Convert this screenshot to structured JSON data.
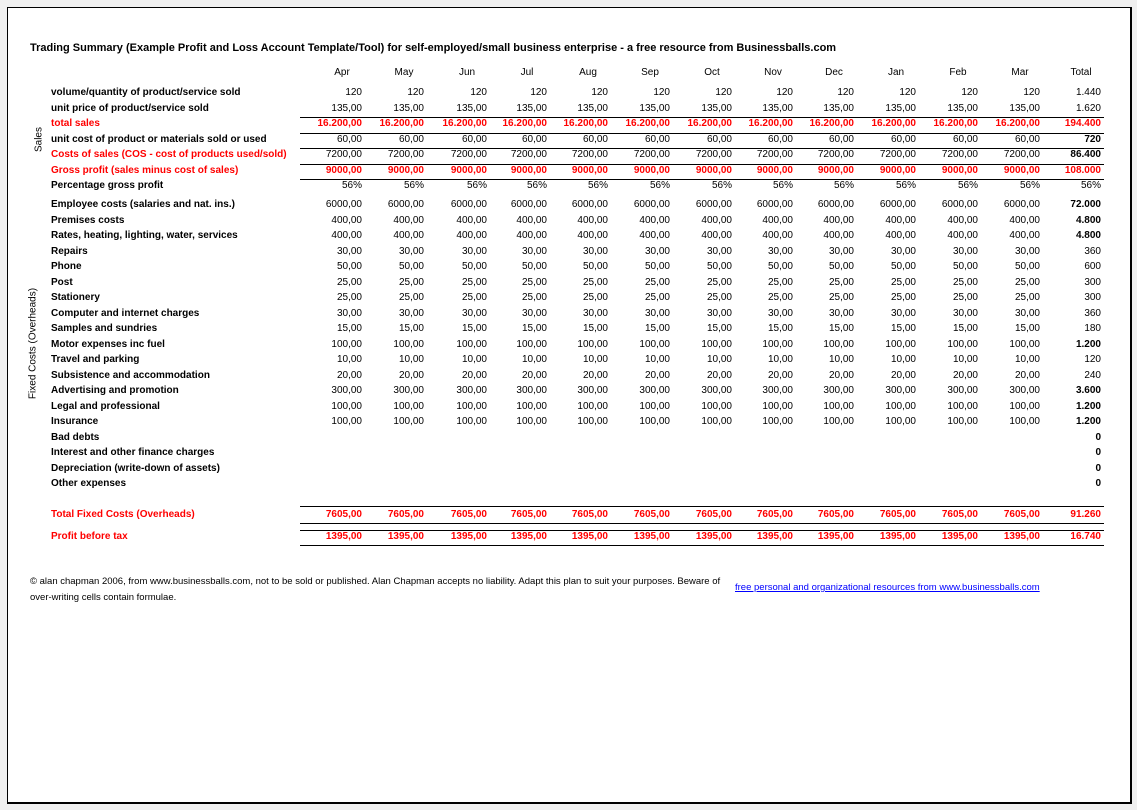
{
  "title": "Trading Summary (Example Profit and Loss Account Template/Tool) for self-employed/small business enterprise - a free resource from Businessballs.com",
  "columns": [
    "Apr",
    "May",
    "Jun",
    "Jul",
    "Aug",
    "Sep",
    "Oct",
    "Nov",
    "Dec",
    "Jan",
    "Feb",
    "Mar",
    "Total"
  ],
  "colors": {
    "highlight": "#ff0000",
    "text": "#000000",
    "link": "#0000ff"
  },
  "sections": {
    "sales": "Sales",
    "fixed": "Fixed Costs (Overheads)"
  },
  "rows": [
    {
      "label": "volume/quantity of product/service sold",
      "values": [
        "120",
        "120",
        "120",
        "120",
        "120",
        "120",
        "120",
        "120",
        "120",
        "120",
        "120",
        "120"
      ],
      "total": "1.440",
      "style": "normal"
    },
    {
      "label": "unit price of product/service sold",
      "values": [
        "135,00",
        "135,00",
        "135,00",
        "135,00",
        "135,00",
        "135,00",
        "135,00",
        "135,00",
        "135,00",
        "135,00",
        "135,00",
        "135,00"
      ],
      "total": "1.620",
      "style": "normal"
    },
    {
      "label": "total sales",
      "values": [
        "16.200,00",
        "16.200,00",
        "16.200,00",
        "16.200,00",
        "16.200,00",
        "16.200,00",
        "16.200,00",
        "16.200,00",
        "16.200,00",
        "16.200,00",
        "16.200,00",
        "16.200,00"
      ],
      "total": "194.400",
      "style": "red"
    },
    {
      "label": "unit cost of product or materials sold or used",
      "values": [
        "60,00",
        "60,00",
        "60,00",
        "60,00",
        "60,00",
        "60,00",
        "60,00",
        "60,00",
        "60,00",
        "60,00",
        "60,00",
        "60,00"
      ],
      "total": "720",
      "style": "boldtotal"
    },
    {
      "label": "Costs of sales (COS - cost of products used/sold)",
      "values": [
        "7200,00",
        "7200,00",
        "7200,00",
        "7200,00",
        "7200,00",
        "7200,00",
        "7200,00",
        "7200,00",
        "7200,00",
        "7200,00",
        "7200,00",
        "7200,00"
      ],
      "total": "86.400",
      "style": "redlabel"
    },
    {
      "label": "Gross profit (sales minus cost of sales)",
      "values": [
        "9000,00",
        "9000,00",
        "9000,00",
        "9000,00",
        "9000,00",
        "9000,00",
        "9000,00",
        "9000,00",
        "9000,00",
        "9000,00",
        "9000,00",
        "9000,00"
      ],
      "total": "108.000",
      "style": "red"
    },
    {
      "label": "Percentage gross profit",
      "values": [
        "56%",
        "56%",
        "56%",
        "56%",
        "56%",
        "56%",
        "56%",
        "56%",
        "56%",
        "56%",
        "56%",
        "56%"
      ],
      "total": "56%",
      "style": "normal"
    },
    {
      "label": "Employee costs (salaries and nat. ins.)",
      "values": [
        "6000,00",
        "6000,00",
        "6000,00",
        "6000,00",
        "6000,00",
        "6000,00",
        "6000,00",
        "6000,00",
        "6000,00",
        "6000,00",
        "6000,00",
        "6000,00"
      ],
      "total": "72.000",
      "style": "boldtotal"
    },
    {
      "label": "Premises costs",
      "values": [
        "400,00",
        "400,00",
        "400,00",
        "400,00",
        "400,00",
        "400,00",
        "400,00",
        "400,00",
        "400,00",
        "400,00",
        "400,00",
        "400,00"
      ],
      "total": "4.800",
      "style": "boldtotal"
    },
    {
      "label": "Rates, heating, lighting, water, services",
      "values": [
        "400,00",
        "400,00",
        "400,00",
        "400,00",
        "400,00",
        "400,00",
        "400,00",
        "400,00",
        "400,00",
        "400,00",
        "400,00",
        "400,00"
      ],
      "total": "4.800",
      "style": "boldtotal"
    },
    {
      "label": "Repairs",
      "values": [
        "30,00",
        "30,00",
        "30,00",
        "30,00",
        "30,00",
        "30,00",
        "30,00",
        "30,00",
        "30,00",
        "30,00",
        "30,00",
        "30,00"
      ],
      "total": "360",
      "style": "normal"
    },
    {
      "label": "Phone",
      "values": [
        "50,00",
        "50,00",
        "50,00",
        "50,00",
        "50,00",
        "50,00",
        "50,00",
        "50,00",
        "50,00",
        "50,00",
        "50,00",
        "50,00"
      ],
      "total": "600",
      "style": "normal"
    },
    {
      "label": "Post",
      "values": [
        "25,00",
        "25,00",
        "25,00",
        "25,00",
        "25,00",
        "25,00",
        "25,00",
        "25,00",
        "25,00",
        "25,00",
        "25,00",
        "25,00"
      ],
      "total": "300",
      "style": "normal"
    },
    {
      "label": "Stationery",
      "values": [
        "25,00",
        "25,00",
        "25,00",
        "25,00",
        "25,00",
        "25,00",
        "25,00",
        "25,00",
        "25,00",
        "25,00",
        "25,00",
        "25,00"
      ],
      "total": "300",
      "style": "normal"
    },
    {
      "label": "Computer and internet charges",
      "values": [
        "30,00",
        "30,00",
        "30,00",
        "30,00",
        "30,00",
        "30,00",
        "30,00",
        "30,00",
        "30,00",
        "30,00",
        "30,00",
        "30,00"
      ],
      "total": "360",
      "style": "normal"
    },
    {
      "label": "Samples and sundries",
      "values": [
        "15,00",
        "15,00",
        "15,00",
        "15,00",
        "15,00",
        "15,00",
        "15,00",
        "15,00",
        "15,00",
        "15,00",
        "15,00",
        "15,00"
      ],
      "total": "180",
      "style": "normal"
    },
    {
      "label": "Motor expenses inc fuel",
      "values": [
        "100,00",
        "100,00",
        "100,00",
        "100,00",
        "100,00",
        "100,00",
        "100,00",
        "100,00",
        "100,00",
        "100,00",
        "100,00",
        "100,00"
      ],
      "total": "1.200",
      "style": "boldtotal"
    },
    {
      "label": "Travel and parking",
      "values": [
        "10,00",
        "10,00",
        "10,00",
        "10,00",
        "10,00",
        "10,00",
        "10,00",
        "10,00",
        "10,00",
        "10,00",
        "10,00",
        "10,00"
      ],
      "total": "120",
      "style": "normal"
    },
    {
      "label": "Subsistence and accommodation",
      "values": [
        "20,00",
        "20,00",
        "20,00",
        "20,00",
        "20,00",
        "20,00",
        "20,00",
        "20,00",
        "20,00",
        "20,00",
        "20,00",
        "20,00"
      ],
      "total": "240",
      "style": "normal"
    },
    {
      "label": "Advertising and promotion",
      "values": [
        "300,00",
        "300,00",
        "300,00",
        "300,00",
        "300,00",
        "300,00",
        "300,00",
        "300,00",
        "300,00",
        "300,00",
        "300,00",
        "300,00"
      ],
      "total": "3.600",
      "style": "boldtotal"
    },
    {
      "label": "Legal and professional",
      "values": [
        "100,00",
        "100,00",
        "100,00",
        "100,00",
        "100,00",
        "100,00",
        "100,00",
        "100,00",
        "100,00",
        "100,00",
        "100,00",
        "100,00"
      ],
      "total": "1.200",
      "style": "boldtotal"
    },
    {
      "label": "Insurance",
      "values": [
        "100,00",
        "100,00",
        "100,00",
        "100,00",
        "100,00",
        "100,00",
        "100,00",
        "100,00",
        "100,00",
        "100,00",
        "100,00",
        "100,00"
      ],
      "total": "1.200",
      "style": "boldtotal"
    },
    {
      "label": "Bad debts",
      "values": [],
      "total": "0",
      "style": "boldtotal"
    },
    {
      "label": "Interest and other finance charges",
      "values": [],
      "total": "0",
      "style": "boldtotal"
    },
    {
      "label": "Depreciation (write-down of assets)",
      "values": [],
      "total": "0",
      "style": "boldtotal"
    },
    {
      "label": "Other expenses",
      "values": [],
      "total": "0",
      "style": "boldtotal"
    },
    {
      "label": "Total Fixed Costs (Overheads)",
      "values": [
        "7605,00",
        "7605,00",
        "7605,00",
        "7605,00",
        "7605,00",
        "7605,00",
        "7605,00",
        "7605,00",
        "7605,00",
        "7605,00",
        "7605,00",
        "7605,00"
      ],
      "total": "91.260",
      "style": "red"
    },
    {
      "label": "Profit before tax",
      "values": [
        "1395,00",
        "1395,00",
        "1395,00",
        "1395,00",
        "1395,00",
        "1395,00",
        "1395,00",
        "1395,00",
        "1395,00",
        "1395,00",
        "1395,00",
        "1395,00"
      ],
      "total": "16.740",
      "style": "red"
    }
  ],
  "footer": {
    "copyright": "© alan chapman 2006, from www.businessballs.com, not to be sold or published. Alan Chapman accepts no liability. Adapt this plan to suit your purposes. Beware of over-writing cells contain formulae.",
    "link": "free personal and organizational resources from www.businessballs.com"
  }
}
